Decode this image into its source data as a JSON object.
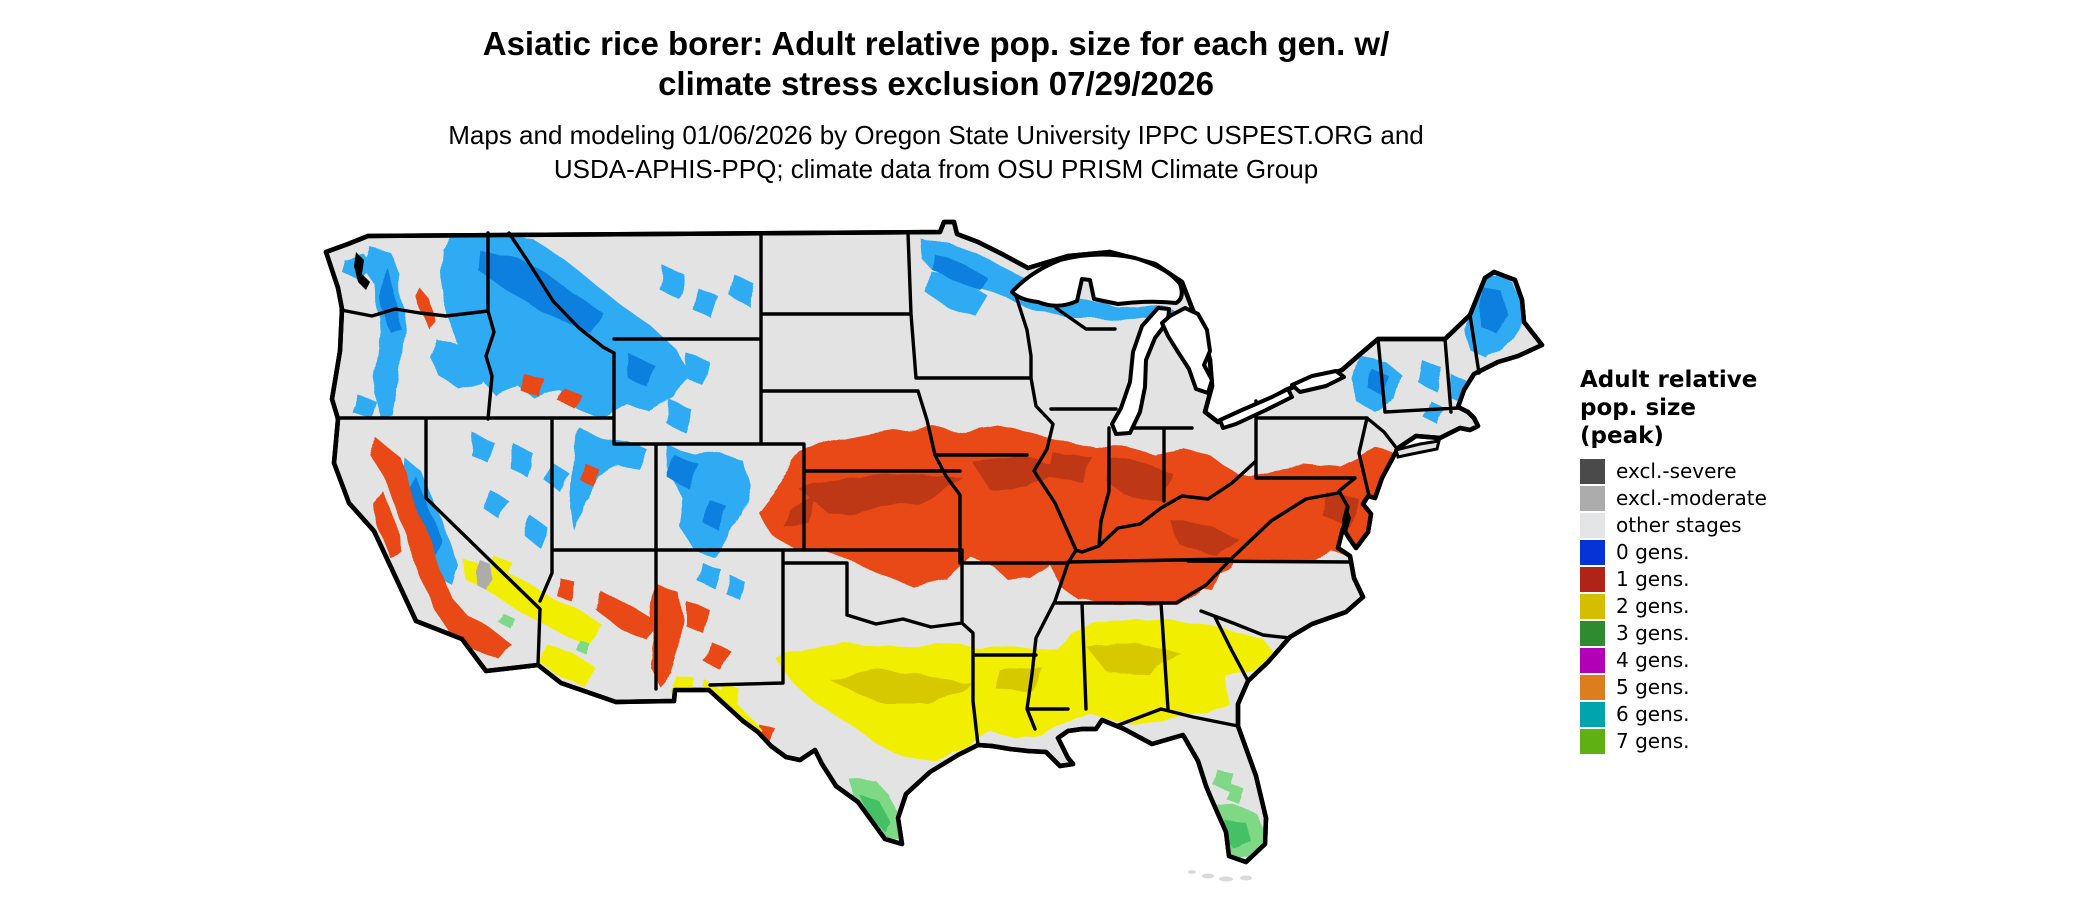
{
  "title": {
    "line1": "Asiatic rice borer: Adult relative pop. size for each gen. w/",
    "line2": "climate stress exclusion 07/29/2026"
  },
  "subtitle": {
    "line1": "Maps and modeling 01/06/2026 by Oregon State University IPPC USPEST.ORG and",
    "line2": "USDA-APHIS-PPQ; climate data from OSU PRISM Climate Group"
  },
  "legend": {
    "title_lines": [
      "Adult relative",
      "pop. size",
      "(peak)"
    ],
    "items": [
      {
        "label": "excl.-severe",
        "color": "#4A4A4A"
      },
      {
        "label": "excl.-moderate",
        "color": "#ACACAC"
      },
      {
        "label": "other stages",
        "color": "#E4E5E7"
      },
      {
        "label": "0 gens.",
        "color": "#0633D6"
      },
      {
        "label": "1 gens.",
        "color": "#B02418"
      },
      {
        "label": "2 gens.",
        "color": "#D4BE00"
      },
      {
        "label": "3 gens.",
        "color": "#2F8B30"
      },
      {
        "label": "4 gens.",
        "color": "#B100B6"
      },
      {
        "label": "5 gens.",
        "color": "#DD7E1E"
      },
      {
        "label": "6 gens.",
        "color": "#00A4AC"
      },
      {
        "label": "7 gens.",
        "color": "#5FB012"
      }
    ]
  },
  "map": {
    "name": "conterminous-us-generation-map",
    "palette": {
      "background": "#E3E3E3",
      "water": "#FFFFFF",
      "border": "#000000",
      "blue_light": "#2FABF2",
      "blue_dark": "#0E7FDE",
      "red_bright": "#E84A16",
      "red_dark": "#BE3715",
      "yellow_bright": "#F2EE05",
      "yellow_dark": "#D6C900",
      "green_light": "#7ED885",
      "green_mid": "#44C065",
      "gray_moderate": "#ACACAC"
    },
    "regions": [
      {
        "category": "0 gens.",
        "areas": "Pacific Northwest, northern Rockies, Sierra Nevada, Utah and Colorado Rockies, northern Minnesota/Wisconsin/Upper Michigan, Adirondacks, northern New England and Maine"
      },
      {
        "category": "1 gens.",
        "areas": "Central belt from eastern Colorado/Kansas across Missouri, Iowa, Illinois, Indiana, Ohio Valley, Kentucky and Tennessee to Virginia, Maryland and New Jersey; California foothills; Arizona/New Mexico highlands"
      },
      {
        "category": "2 gens.",
        "areas": "Southern band from central Texas through Louisiana, Mississippi, Alabama and Georgia to coastal South Carolina; southern Arizona and Nevada"
      },
      {
        "category": "3 gens.",
        "areas": "Southern tip of Texas and southern Florida"
      },
      {
        "category": "excl.-moderate",
        "areas": "Small Mojave Desert patch in eastern California/Nevada"
      },
      {
        "category": "other stages",
        "areas": "Remaining light-gray areas of the conterminous United States"
      }
    ]
  }
}
